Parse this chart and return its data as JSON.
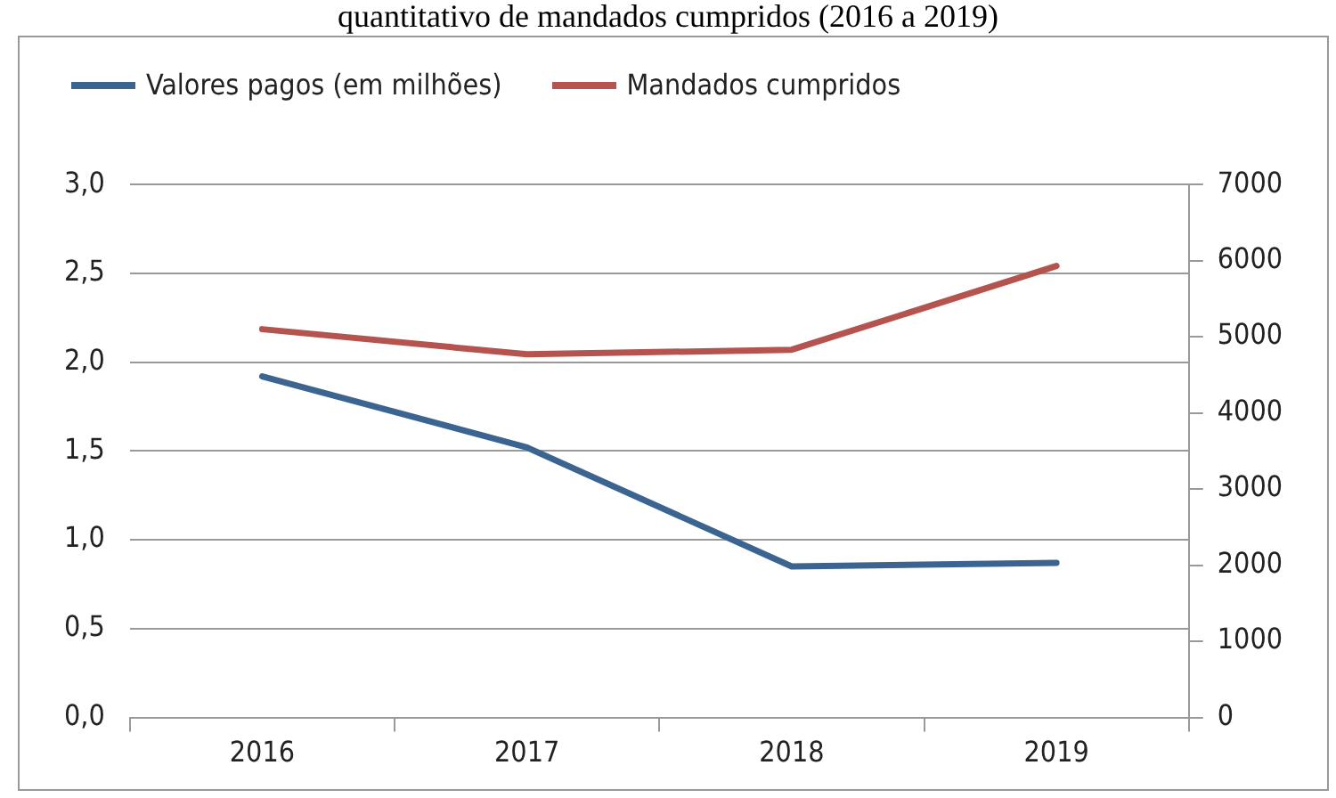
{
  "chart_data": {
    "type": "line",
    "title": "quantitativo de mandados cumpridos (2016 a 2019)",
    "categories": [
      "2016",
      "2017",
      "2018",
      "2019"
    ],
    "series": [
      {
        "name": "Valores pagos (em milhões)",
        "color": "#3c6491",
        "values": [
          1.92,
          1.52,
          0.85,
          0.87
        ]
      },
      {
        "name": "Mandados cumpridos",
        "color": "#b5534e",
        "values": [
          5100,
          4770,
          4830,
          5930
        ],
        "axis": "y2"
      }
    ],
    "ylim": [
      0,
      3
    ],
    "yticks": [
      {
        "value": 0,
        "label": "0,0"
      },
      {
        "value": 0.5,
        "label": "0,5"
      },
      {
        "value": 1,
        "label": "1,0"
      },
      {
        "value": 1.5,
        "label": "1,5"
      },
      {
        "value": 2,
        "label": "2,0"
      },
      {
        "value": 2.5,
        "label": "2,5"
      },
      {
        "value": 3,
        "label": "3,0"
      }
    ],
    "y2lim": [
      0,
      7000
    ],
    "y2ticks": [
      0,
      1000,
      2000,
      3000,
      4000,
      5000,
      6000,
      7000
    ],
    "grid": "y",
    "legend": "top left",
    "marker": "none",
    "line_style": "solid"
  }
}
